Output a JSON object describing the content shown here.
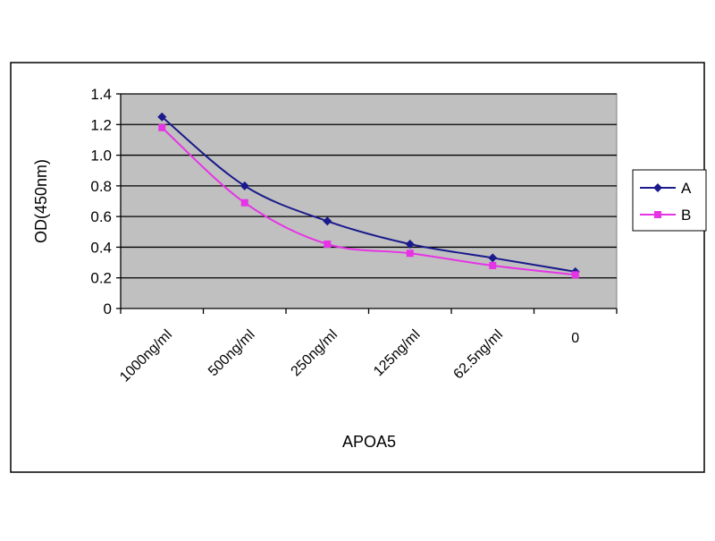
{
  "chart_data": {
    "type": "line",
    "title": "",
    "xlabel": "APOA5",
    "ylabel": "OD(450nm)",
    "categories": [
      "1000ng/ml",
      "500ng/ml",
      "250ng/ml",
      "125ng/ml",
      "62.5ng/ml",
      "0"
    ],
    "ylim": [
      0,
      1.4
    ],
    "yticks": [
      0,
      0.2,
      0.4,
      0.6,
      0.8,
      1.0,
      1.2,
      1.4
    ],
    "ytick_labels": [
      "0",
      "0.2",
      "0.4",
      "0.6",
      "0.8",
      "1.0",
      "1.2",
      "1.4"
    ],
    "grid": true,
    "legend_position": "right",
    "series": [
      {
        "name": "A",
        "color": "#1a1a8c",
        "marker": "diamond",
        "values": [
          1.25,
          0.8,
          0.57,
          0.42,
          0.33,
          0.24
        ]
      },
      {
        "name": "B",
        "color": "#e633e6",
        "marker": "square",
        "values": [
          1.18,
          0.69,
          0.42,
          0.36,
          0.28,
          0.22
        ]
      }
    ],
    "plot_background": "#c0c0c0"
  }
}
